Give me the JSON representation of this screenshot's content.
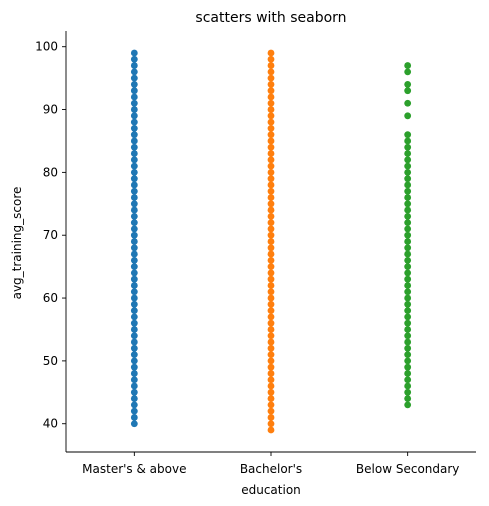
{
  "chart_data": {
    "type": "scatter",
    "title": "scatters with seaborn",
    "xlabel": "education",
    "ylabel": "avg_training_score",
    "categories": [
      "Master's & above",
      "Bachelor's",
      "Below Secondary"
    ],
    "ylim": [
      35.5,
      102.5
    ],
    "yticks": [
      40,
      50,
      60,
      70,
      80,
      90,
      100
    ],
    "grid": false,
    "legend": "none",
    "series": [
      {
        "category": "Master's & above",
        "color": "#1f77b4",
        "range": [
          40,
          99
        ],
        "missing": []
      },
      {
        "category": "Bachelor's",
        "color": "#ff7f0e",
        "range": [
          39,
          99
        ],
        "missing": []
      },
      {
        "category": "Below Secondary",
        "color": "#2ca02c",
        "range": [
          43,
          86
        ],
        "missing": [],
        "extra": [
          89,
          91,
          93,
          94,
          96,
          97
        ]
      }
    ]
  }
}
